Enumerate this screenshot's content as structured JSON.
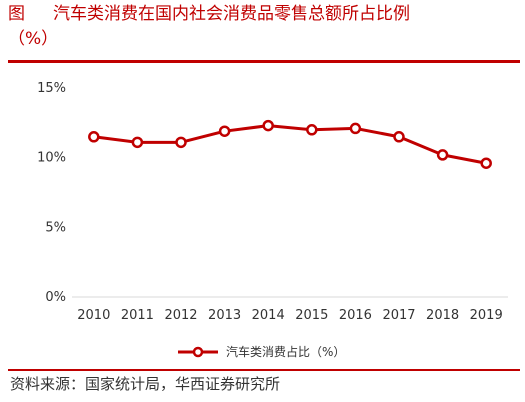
{
  "figure": {
    "label": "图",
    "title_line1": "汽车类消费在国内社会消费品零售总额所占比例",
    "title_line2": "（%）",
    "source": "资料来源：国家统计局，华西证券研究所"
  },
  "colors": {
    "accent": "#c00000",
    "series": "#c00000",
    "marker_fill": "#ffffff",
    "axis": "#d9d9d9"
  },
  "chart_data": {
    "type": "line",
    "title": "",
    "xlabel": "",
    "ylabel": "",
    "x": [
      "2010",
      "2011",
      "2012",
      "2013",
      "2014",
      "2015",
      "2016",
      "2017",
      "2018",
      "2019"
    ],
    "ylim": [
      0,
      15
    ],
    "yticks": [
      0,
      5,
      10,
      15
    ],
    "ytick_labels": [
      "0%",
      "5%",
      "10%",
      "15%"
    ],
    "grid": false,
    "legend_position": "bottom",
    "series": [
      {
        "name": "汽车类消费占比（%）",
        "values": [
          11.5,
          11.1,
          11.1,
          11.9,
          12.3,
          12.0,
          12.1,
          11.5,
          10.2,
          9.6
        ]
      }
    ]
  }
}
